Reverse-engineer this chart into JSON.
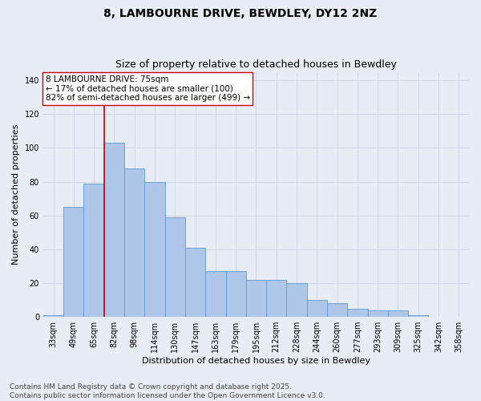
{
  "title1": "8, LAMBOURNE DRIVE, BEWDLEY, DY12 2NZ",
  "title2": "Size of property relative to detached houses in Bewdley",
  "xlabel": "Distribution of detached houses by size in Bewdley",
  "ylabel": "Number of detached properties",
  "categories": [
    "33sqm",
    "49sqm",
    "65sqm",
    "82sqm",
    "98sqm",
    "114sqm",
    "130sqm",
    "147sqm",
    "163sqm",
    "179sqm",
    "195sqm",
    "212sqm",
    "228sqm",
    "244sqm",
    "260sqm",
    "277sqm",
    "293sqm",
    "309sqm",
    "325sqm",
    "342sqm",
    "358sqm"
  ],
  "values": [
    1,
    65,
    79,
    103,
    88,
    80,
    59,
    41,
    27,
    27,
    22,
    22,
    20,
    10,
    8,
    5,
    4,
    4,
    1,
    0,
    0
  ],
  "bar_color": "#aec6e8",
  "bar_edge_color": "#5b9bd5",
  "vline_x_index": 2,
  "vline_color": "#cc0000",
  "annotation_text": "8 LAMBOURNE DRIVE: 75sqm\n← 17% of detached houses are smaller (100)\n82% of semi-detached houses are larger (499) →",
  "annotation_box_color": "#ffffff",
  "annotation_box_edge": "#cc0000",
  "ylim": [
    0,
    145
  ],
  "yticks": [
    0,
    20,
    40,
    60,
    80,
    100,
    120,
    140
  ],
  "grid_color": "#d0d8e8",
  "background_color": "#e8edf5",
  "footer": "Contains HM Land Registry data © Crown copyright and database right 2025.\nContains public sector information licensed under the Open Government Licence v3.0.",
  "title_fontsize": 10,
  "subtitle_fontsize": 9,
  "axis_label_fontsize": 8,
  "tick_fontsize": 7,
  "annotation_fontsize": 7.5,
  "footer_fontsize": 6.5
}
